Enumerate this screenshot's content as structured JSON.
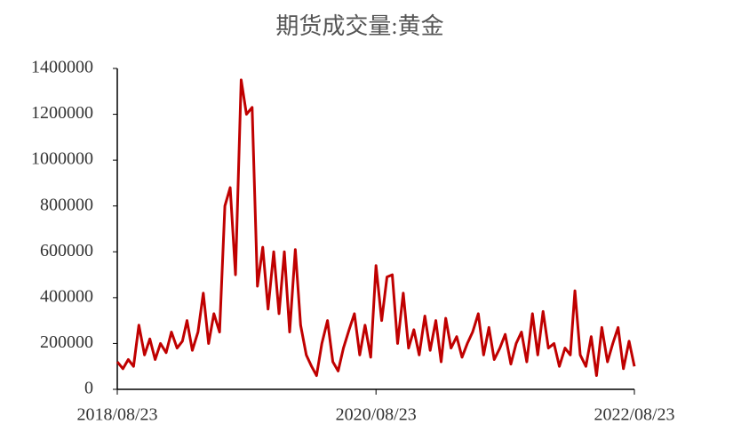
{
  "chart_data": {
    "type": "line",
    "title": "期货成交量:黄金",
    "x": [
      "2018/08/23",
      "2018/09/08",
      "2018/09/23",
      "2018/10/08",
      "2018/10/23",
      "2018/11/08",
      "2018/11/23",
      "2018/12/08",
      "2018/12/23",
      "2019/01/08",
      "2019/01/23",
      "2019/02/08",
      "2019/02/23",
      "2019/03/08",
      "2019/03/23",
      "2019/04/08",
      "2019/04/23",
      "2019/05/08",
      "2019/05/23",
      "2019/06/08",
      "2019/06/23",
      "2019/07/08",
      "2019/07/23",
      "2019/08/08",
      "2019/08/23",
      "2019/09/08",
      "2019/09/23",
      "2019/10/08",
      "2019/10/23",
      "2019/11/08",
      "2019/11/23",
      "2019/12/08",
      "2019/12/23",
      "2020/01/08",
      "2020/01/23",
      "2020/02/08",
      "2020/02/23",
      "2020/03/08",
      "2020/03/23",
      "2020/04/08",
      "2020/04/23",
      "2020/05/08",
      "2020/05/23",
      "2020/06/08",
      "2020/06/23",
      "2020/07/08",
      "2020/07/23",
      "2020/08/08",
      "2020/08/23",
      "2020/09/08",
      "2020/09/23",
      "2020/10/08",
      "2020/10/23",
      "2020/11/08",
      "2020/11/23",
      "2020/12/08",
      "2020/12/23",
      "2021/01/08",
      "2021/01/23",
      "2021/02/08",
      "2021/02/23",
      "2021/03/08",
      "2021/03/23",
      "2021/04/08",
      "2021/04/23",
      "2021/05/08",
      "2021/05/23",
      "2021/06/08",
      "2021/06/23",
      "2021/07/08",
      "2021/07/23",
      "2021/08/08",
      "2021/08/23",
      "2021/09/08",
      "2021/09/23",
      "2021/10/08",
      "2021/10/23",
      "2021/11/08",
      "2021/11/23",
      "2021/12/08",
      "2021/12/23",
      "2022/01/08",
      "2022/01/23",
      "2022/02/08",
      "2022/02/23",
      "2022/03/08",
      "2022/03/23",
      "2022/04/08",
      "2022/04/23",
      "2022/05/08",
      "2022/05/23",
      "2022/06/08",
      "2022/06/23",
      "2022/07/08",
      "2022/07/23",
      "2022/08/08",
      "2022/08/23"
    ],
    "series": [
      {
        "color": "#c00000",
        "values": [
          120000,
          90000,
          130000,
          100000,
          280000,
          150000,
          220000,
          130000,
          200000,
          160000,
          250000,
          180000,
          210000,
          300000,
          170000,
          250000,
          420000,
          200000,
          330000,
          250000,
          800000,
          880000,
          500000,
          1350000,
          1200000,
          1230000,
          450000,
          620000,
          350000,
          600000,
          330000,
          600000,
          250000,
          610000,
          280000,
          150000,
          100000,
          60000,
          200000,
          300000,
          120000,
          80000,
          180000,
          260000,
          330000,
          150000,
          280000,
          140000,
          540000,
          300000,
          490000,
          500000,
          200000,
          420000,
          180000,
          260000,
          150000,
          320000,
          170000,
          300000,
          120000,
          310000,
          180000,
          230000,
          140000,
          200000,
          250000,
          330000,
          150000,
          270000,
          130000,
          180000,
          240000,
          110000,
          200000,
          250000,
          120000,
          330000,
          150000,
          340000,
          180000,
          200000,
          100000,
          180000,
          150000,
          430000,
          150000,
          100000,
          230000,
          60000,
          270000,
          120000,
          200000,
          270000,
          90000,
          210000,
          100000
        ]
      }
    ],
    "xlim": [
      "2018/08/23",
      "2022/08/23"
    ],
    "xticks": [
      "2018/08/23",
      "2020/08/23",
      "2022/08/23"
    ],
    "ylim": [
      0,
      1400000
    ],
    "yticks": [
      0,
      200000,
      400000,
      600000,
      800000,
      1000000,
      1200000,
      1400000
    ]
  }
}
